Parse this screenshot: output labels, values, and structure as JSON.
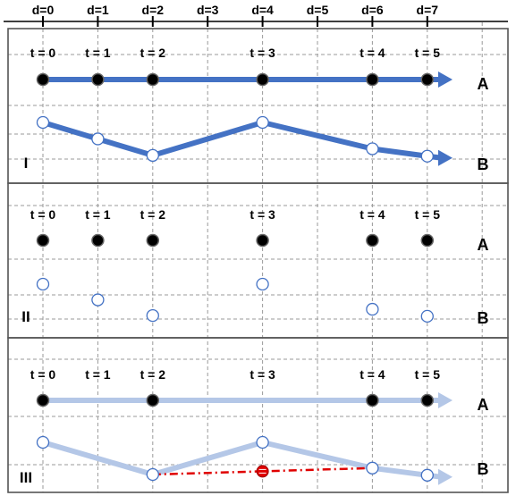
{
  "d_labels": [
    "d=0",
    "d=1",
    "d=2",
    "d=3",
    "d=4",
    "d=5",
    "d=6",
    "d=7"
  ],
  "colors": {
    "grid": "#9a9a9a",
    "frame": "#555555",
    "arrow": "#4472c4",
    "arrow_faded": "#b4c7e7",
    "dot_filled": "#000000",
    "dot_open_stroke": "#4472c4",
    "interpolation": "#e00000",
    "estimated_dot": "#e00000"
  },
  "panels": [
    {
      "roman": "I",
      "style": "solid",
      "a_label": "A",
      "b_label": "B",
      "a_points": [
        {
          "t": "t = 0",
          "d": 0
        },
        {
          "t": "t = 1",
          "d": 1
        },
        {
          "t": "t = 2",
          "d": 2
        },
        {
          "t": "t = 3",
          "d": 4
        },
        {
          "t": "t = 4",
          "d": 6
        },
        {
          "t": "t = 5",
          "d": 7
        }
      ],
      "b_points": [
        {
          "d": 0,
          "level": 0.0
        },
        {
          "d": 1,
          "level": 0.45
        },
        {
          "d": 2,
          "level": 0.9
        },
        {
          "d": 4,
          "level": 0.0
        },
        {
          "d": 6,
          "level": 0.72
        },
        {
          "d": 7,
          "level": 0.92
        }
      ],
      "a_line": true,
      "b_line": true
    },
    {
      "roman": "II",
      "style": "none",
      "a_label": "A",
      "b_label": "B",
      "a_points": [
        {
          "t": "t = 0",
          "d": 0
        },
        {
          "t": "t = 1",
          "d": 1
        },
        {
          "t": "t = 2",
          "d": 2
        },
        {
          "t": "t = 3",
          "d": 4
        },
        {
          "t": "t = 4",
          "d": 6
        },
        {
          "t": "t = 5",
          "d": 7
        }
      ],
      "b_points": [
        {
          "d": 0,
          "level": 0.0
        },
        {
          "d": 1,
          "level": 0.45
        },
        {
          "d": 2,
          "level": 0.9
        },
        {
          "d": 4,
          "level": 0.0
        },
        {
          "d": 6,
          "level": 0.72
        },
        {
          "d": 7,
          "level": 0.92
        }
      ],
      "a_line": false,
      "b_line": false
    },
    {
      "roman": "III",
      "style": "faded",
      "a_label": "A",
      "b_label": "B",
      "a_points": [
        {
          "t": "t = 0",
          "d": 0,
          "filled": true
        },
        {
          "t": "t = 1",
          "d": 1,
          "filled": false
        },
        {
          "t": "t = 2",
          "d": 2,
          "filled": true
        },
        {
          "t": "t = 3",
          "d": 4,
          "filled": false
        },
        {
          "t": "t = 4",
          "d": 6,
          "filled": true
        },
        {
          "t": "t = 5",
          "d": 7,
          "filled": true
        }
      ],
      "b_points": [
        {
          "d": 0,
          "level": 0.0
        },
        {
          "d": 2,
          "level": 0.9
        },
        {
          "d": 4,
          "level": 0.0
        },
        {
          "d": 6,
          "level": 0.72
        },
        {
          "d": 7,
          "level": 0.92
        }
      ],
      "estimated_point": {
        "d": 4
      },
      "interpolation_from_d": 2,
      "interpolation_to_d": 6,
      "a_line": true,
      "b_line": true
    }
  ]
}
